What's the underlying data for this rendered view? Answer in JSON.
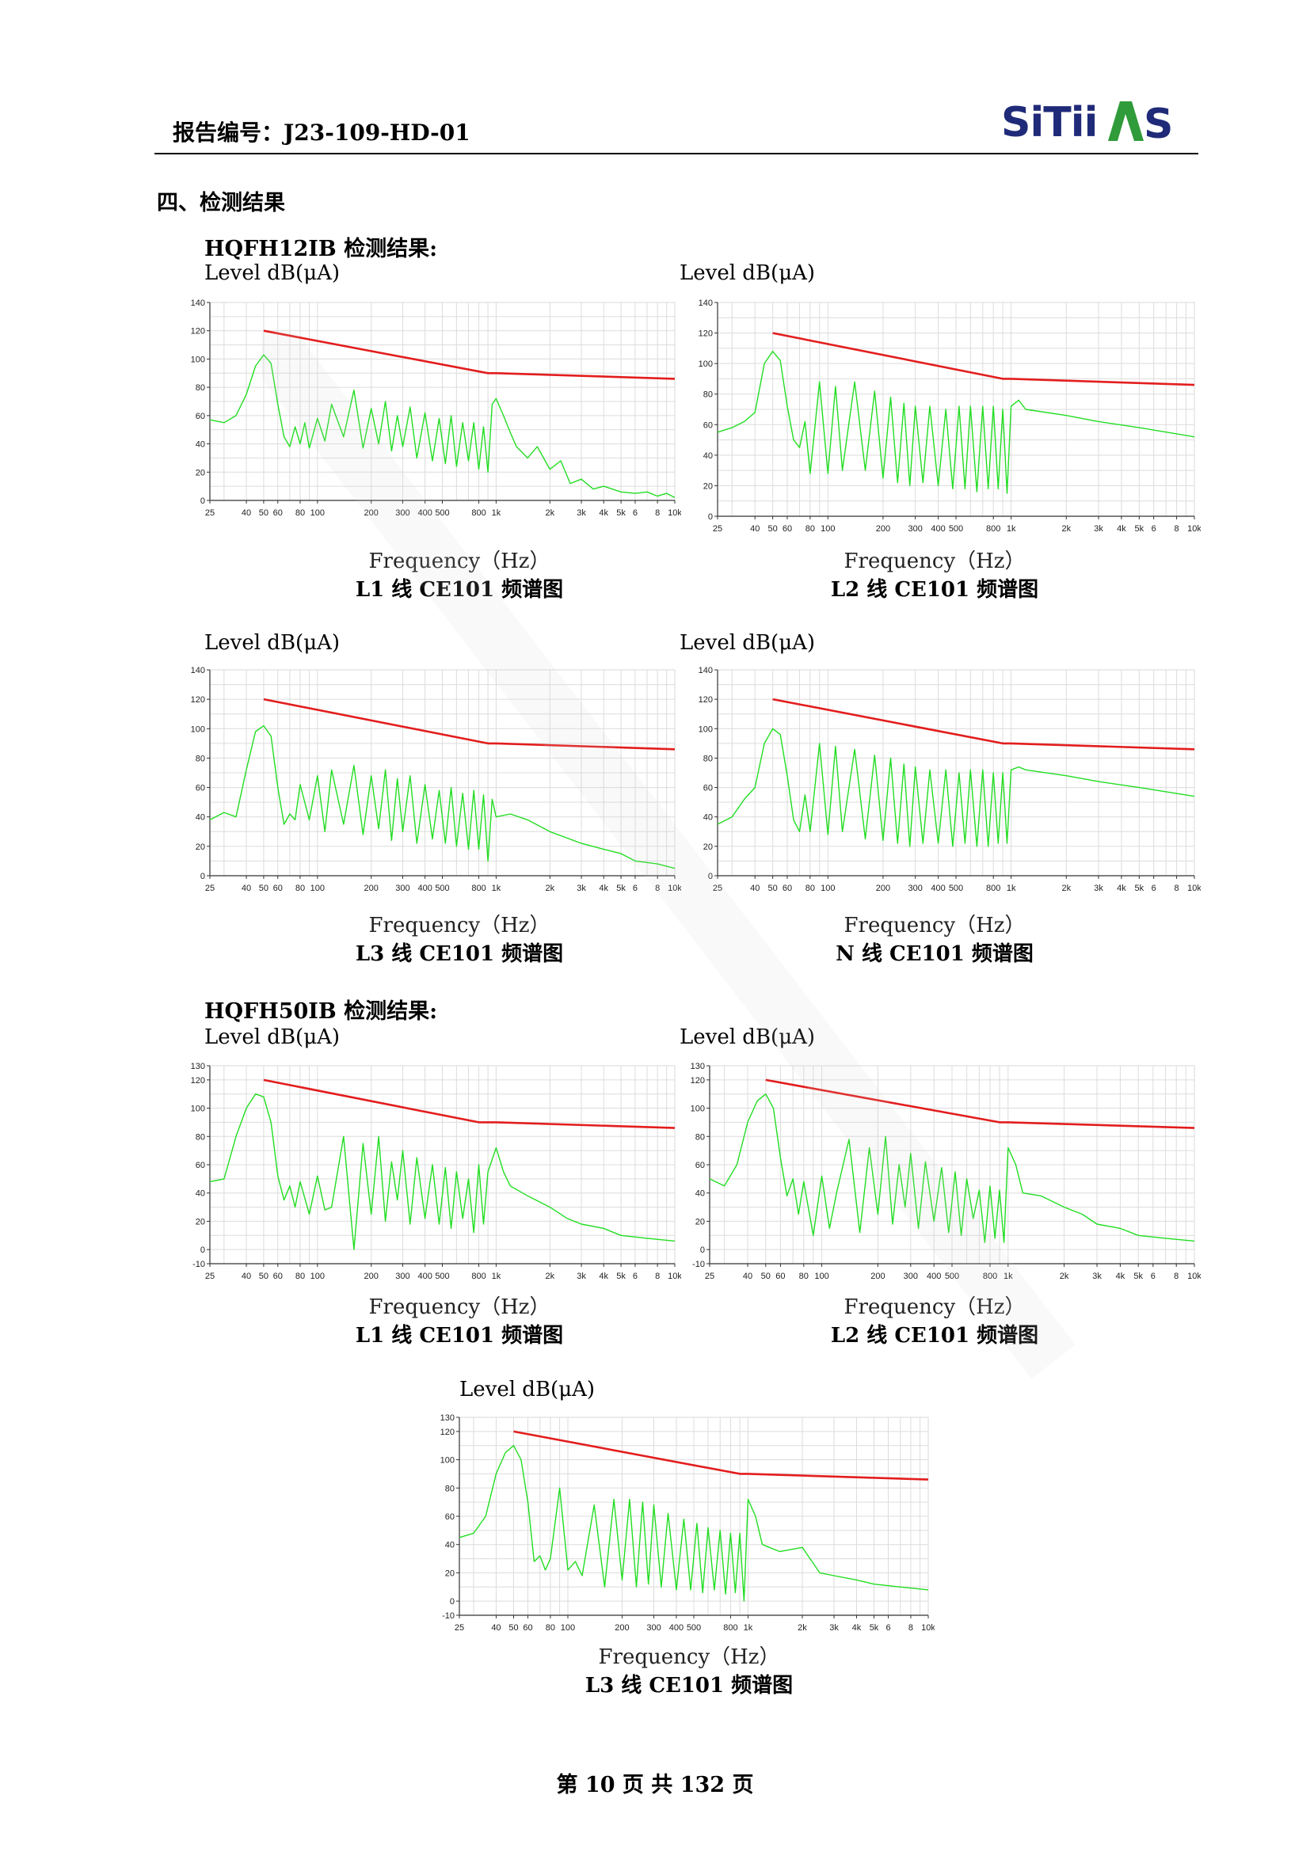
{
  "header": {
    "report_number": "报告编号：J23-109-HD-01",
    "logo_text": "SITIIAS"
  },
  "section": {
    "title": "四、检测结果",
    "group1_title": "HQFH12IB 检测结果:",
    "group2_title": "HQFH50IB 检测结果:"
  },
  "axis_common": {
    "ylabel": "Level dB(μA)",
    "xlabel": "Frequency（Hz）",
    "x_ticks": [
      "25",
      "40",
      "50",
      "60",
      "80",
      "100",
      "200",
      "300",
      "400",
      "500",
      "800",
      "1k",
      "2k",
      "3k",
      "4k",
      "5k",
      "6",
      "8",
      "10k"
    ]
  },
  "charts": [
    {
      "caption": "L1 线 CE101 频谱图"
    },
    {
      "caption": "L2 线 CE101 频谱图"
    },
    {
      "caption": "L3 线 CE101 频谱图"
    },
    {
      "caption": "N 线 CE101 频谱图"
    },
    {
      "caption": "L1 线 CE101 频谱图"
    },
    {
      "caption": "L2 线 CE101 频谱图"
    },
    {
      "caption": "L3 线 CE101 频谱图"
    }
  ],
  "chart_data": [
    {
      "type": "line",
      "xlabel": "Frequency（Hz）",
      "ylabel": "Level dB(μA)",
      "x_scale": "log",
      "xlim": [
        25,
        10000
      ],
      "ylim": [
        0,
        140
      ],
      "y_ticks": [
        0,
        20,
        40,
        60,
        80,
        100,
        120,
        140
      ],
      "grid": true,
      "colors": {
        "limit": "#e31d1d",
        "measured": "#22dd22"
      },
      "series": [
        {
          "x": [
            50,
            900,
            1000,
            10000
          ],
          "values": [
            120,
            90,
            90,
            86
          ]
        },
        {
          "x": [
            25,
            30,
            35,
            40,
            45,
            50,
            55,
            60,
            65,
            70,
            75,
            80,
            85,
            90,
            100,
            110,
            120,
            140,
            160,
            180,
            200,
            220,
            240,
            260,
            280,
            300,
            330,
            360,
            400,
            440,
            480,
            520,
            560,
            600,
            650,
            700,
            750,
            800,
            850,
            900,
            950,
            1000,
            1100,
            1200,
            1300,
            1500,
            1700,
            2000,
            2300,
            2600,
            3000,
            3500,
            4000,
            5000,
            6000,
            7000,
            8000,
            9000,
            10000
          ],
          "values": [
            57,
            55,
            60,
            75,
            95,
            103,
            97,
            68,
            45,
            38,
            52,
            40,
            55,
            37,
            58,
            42,
            68,
            45,
            78,
            37,
            65,
            40,
            70,
            35,
            60,
            38,
            66,
            30,
            62,
            28,
            58,
            26,
            60,
            24,
            55,
            28,
            55,
            22,
            52,
            20,
            68,
            72,
            60,
            48,
            38,
            30,
            38,
            22,
            28,
            12,
            15,
            8,
            10,
            6,
            5,
            6,
            3,
            5,
            2
          ]
        }
      ]
    },
    {
      "type": "line",
      "xlabel": "Frequency（Hz）",
      "ylabel": "Level dB(μA)",
      "x_scale": "log",
      "xlim": [
        25,
        10000
      ],
      "ylim": [
        0,
        140
      ],
      "y_ticks": [
        0,
        20,
        40,
        60,
        80,
        100,
        120,
        140
      ],
      "grid": true,
      "colors": {
        "limit": "#e31d1d",
        "measured": "#22dd22"
      },
      "series": [
        {
          "x": [
            50,
            900,
            1000,
            10000
          ],
          "values": [
            120,
            90,
            90,
            86
          ]
        },
        {
          "x": [
            25,
            30,
            35,
            40,
            45,
            50,
            55,
            60,
            65,
            70,
            75,
            80,
            90,
            100,
            110,
            120,
            140,
            160,
            180,
            200,
            220,
            240,
            260,
            280,
            300,
            330,
            360,
            400,
            440,
            480,
            520,
            560,
            600,
            650,
            700,
            750,
            800,
            850,
            900,
            950,
            1000,
            1100,
            1200,
            2000,
            3000,
            5000,
            10000
          ],
          "values": [
            55,
            58,
            62,
            68,
            100,
            108,
            102,
            72,
            50,
            45,
            62,
            28,
            88,
            28,
            85,
            30,
            88,
            30,
            82,
            25,
            78,
            22,
            74,
            20,
            72,
            22,
            72,
            20,
            70,
            18,
            72,
            18,
            72,
            16,
            72,
            18,
            72,
            18,
            70,
            15,
            72,
            76,
            70,
            66,
            62,
            58,
            52
          ]
        }
      ]
    },
    {
      "type": "line",
      "xlabel": "Frequency（Hz）",
      "ylabel": "Level dB(μA)",
      "x_scale": "log",
      "xlim": [
        25,
        10000
      ],
      "ylim": [
        0,
        140
      ],
      "y_ticks": [
        0,
        20,
        40,
        60,
        80,
        100,
        120,
        140
      ],
      "grid": true,
      "colors": {
        "limit": "#e31d1d",
        "measured": "#22dd22"
      },
      "series": [
        {
          "x": [
            50,
            900,
            1000,
            10000
          ],
          "values": [
            120,
            90,
            90,
            86
          ]
        },
        {
          "x": [
            25,
            30,
            35,
            40,
            45,
            50,
            55,
            60,
            65,
            70,
            75,
            80,
            90,
            100,
            110,
            120,
            140,
            160,
            180,
            200,
            220,
            240,
            260,
            280,
            300,
            330,
            360,
            400,
            440,
            480,
            520,
            560,
            600,
            650,
            700,
            750,
            800,
            850,
            900,
            950,
            1000,
            1200,
            1500,
            2000,
            3000,
            4000,
            5000,
            6000,
            8000,
            10000
          ],
          "values": [
            38,
            43,
            40,
            72,
            98,
            102,
            95,
            60,
            35,
            42,
            38,
            62,
            38,
            68,
            30,
            72,
            35,
            75,
            28,
            68,
            32,
            72,
            24,
            66,
            30,
            68,
            22,
            62,
            25,
            58,
            22,
            60,
            20,
            56,
            18,
            58,
            18,
            55,
            10,
            52,
            40,
            42,
            38,
            30,
            22,
            18,
            15,
            10,
            8,
            5
          ]
        }
      ]
    },
    {
      "type": "line",
      "xlabel": "Frequency（Hz）",
      "ylabel": "Level dB(μA)",
      "x_scale": "log",
      "xlim": [
        25,
        10000
      ],
      "ylim": [
        0,
        140
      ],
      "y_ticks": [
        0,
        20,
        40,
        60,
        80,
        100,
        120,
        140
      ],
      "grid": true,
      "colors": {
        "limit": "#e31d1d",
        "measured": "#22dd22"
      },
      "series": [
        {
          "x": [
            50,
            900,
            1000,
            10000
          ],
          "values": [
            120,
            90,
            90,
            86
          ]
        },
        {
          "x": [
            25,
            30,
            35,
            40,
            45,
            50,
            55,
            60,
            65,
            70,
            75,
            80,
            90,
            100,
            110,
            120,
            140,
            160,
            180,
            200,
            220,
            240,
            260,
            280,
            300,
            330,
            360,
            400,
            440,
            480,
            520,
            560,
            600,
            650,
            700,
            750,
            800,
            850,
            900,
            950,
            1000,
            1100,
            1200,
            2000,
            3000,
            5000,
            10000
          ],
          "values": [
            35,
            40,
            52,
            60,
            90,
            100,
            96,
            68,
            38,
            30,
            55,
            30,
            90,
            28,
            88,
            30,
            86,
            25,
            82,
            24,
            80,
            22,
            76,
            20,
            74,
            22,
            72,
            22,
            72,
            20,
            70,
            22,
            72,
            20,
            72,
            20,
            70,
            22,
            70,
            22,
            72,
            74,
            72,
            68,
            64,
            60,
            54
          ]
        }
      ]
    },
    {
      "type": "line",
      "xlabel": "Frequency（Hz）",
      "ylabel": "Level dB(μA)",
      "x_scale": "log",
      "xlim": [
        25,
        10000
      ],
      "ylim": [
        -10,
        130
      ],
      "y_ticks": [
        -10,
        0,
        20,
        40,
        60,
        80,
        100,
        120,
        130
      ],
      "grid": true,
      "colors": {
        "limit": "#e31d1d",
        "measured": "#22dd22"
      },
      "series": [
        {
          "x": [
            50,
            800,
            1000,
            10000
          ],
          "values": [
            120,
            90,
            90,
            86
          ]
        },
        {
          "x": [
            25,
            30,
            35,
            40,
            45,
            50,
            55,
            60,
            65,
            70,
            75,
            80,
            90,
            100,
            110,
            120,
            140,
            160,
            180,
            200,
            220,
            240,
            260,
            280,
            300,
            330,
            360,
            400,
            440,
            480,
            520,
            560,
            600,
            650,
            700,
            750,
            800,
            850,
            900,
            1000,
            1100,
            1200,
            1500,
            2000,
            2500,
            3000,
            4000,
            5000,
            7000,
            10000
          ],
          "values": [
            48,
            50,
            80,
            100,
            110,
            108,
            90,
            52,
            35,
            45,
            30,
            48,
            25,
            52,
            28,
            30,
            80,
            0,
            75,
            25,
            80,
            20,
            62,
            35,
            70,
            18,
            65,
            22,
            60,
            18,
            58,
            15,
            55,
            22,
            50,
            12,
            60,
            18,
            55,
            72,
            55,
            45,
            38,
            30,
            22,
            18,
            15,
            10,
            8,
            6
          ]
        }
      ]
    },
    {
      "type": "line",
      "xlabel": "Frequency（Hz）",
      "ylabel": "Level dB(μA)",
      "x_scale": "log",
      "xlim": [
        25,
        10000
      ],
      "ylim": [
        -10,
        130
      ],
      "y_ticks": [
        -10,
        0,
        20,
        40,
        60,
        80,
        100,
        120,
        130
      ],
      "grid": true,
      "colors": {
        "limit": "#e31d1d",
        "measured": "#22dd22"
      },
      "series": [
        {
          "x": [
            50,
            900,
            1000,
            10000
          ],
          "values": [
            120,
            90,
            90,
            86
          ]
        },
        {
          "x": [
            25,
            30,
            35,
            40,
            45,
            50,
            55,
            60,
            65,
            70,
            75,
            80,
            90,
            100,
            110,
            120,
            140,
            160,
            180,
            200,
            220,
            240,
            260,
            280,
            300,
            330,
            360,
            400,
            440,
            480,
            520,
            560,
            600,
            650,
            700,
            750,
            800,
            850,
            900,
            950,
            1000,
            1100,
            1200,
            1500,
            2000,
            2500,
            3000,
            4000,
            5000,
            7000,
            10000
          ],
          "values": [
            50,
            45,
            60,
            90,
            105,
            110,
            100,
            65,
            38,
            50,
            25,
            48,
            10,
            52,
            15,
            40,
            78,
            12,
            72,
            25,
            80,
            18,
            60,
            30,
            68,
            15,
            62,
            20,
            58,
            12,
            55,
            10,
            50,
            22,
            42,
            5,
            45,
            8,
            42,
            5,
            72,
            60,
            40,
            38,
            30,
            25,
            18,
            15,
            10,
            8,
            6
          ]
        }
      ]
    },
    {
      "type": "line",
      "xlabel": "Frequency（Hz）",
      "ylabel": "Level dB(μA)",
      "x_scale": "log",
      "xlim": [
        25,
        10000
      ],
      "ylim": [
        -10,
        130
      ],
      "y_ticks": [
        -10,
        0,
        20,
        40,
        60,
        80,
        100,
        120,
        130
      ],
      "grid": true,
      "colors": {
        "limit": "#e31d1d",
        "measured": "#22dd22"
      },
      "series": [
        {
          "x": [
            50,
            900,
            1000,
            10000
          ],
          "values": [
            120,
            90,
            90,
            86
          ]
        },
        {
          "x": [
            25,
            30,
            35,
            40,
            45,
            50,
            55,
            60,
            65,
            70,
            75,
            80,
            90,
            100,
            110,
            120,
            140,
            160,
            180,
            200,
            220,
            240,
            260,
            280,
            300,
            330,
            360,
            400,
            440,
            480,
            520,
            560,
            600,
            650,
            700,
            750,
            800,
            850,
            900,
            950,
            1000,
            1100,
            1200,
            1500,
            2000,
            2500,
            3000,
            4000,
            5000,
            7000,
            10000
          ],
          "values": [
            45,
            48,
            60,
            90,
            105,
            110,
            100,
            70,
            28,
            32,
            22,
            30,
            80,
            22,
            28,
            18,
            68,
            10,
            72,
            15,
            72,
            10,
            70,
            12,
            68,
            10,
            62,
            8,
            58,
            8,
            55,
            6,
            52,
            8,
            50,
            5,
            48,
            6,
            48,
            0,
            72,
            60,
            40,
            35,
            38,
            20,
            18,
            15,
            12,
            10,
            8
          ]
        }
      ]
    }
  ],
  "footer": {
    "page": "第 10 页  共 132 页"
  }
}
